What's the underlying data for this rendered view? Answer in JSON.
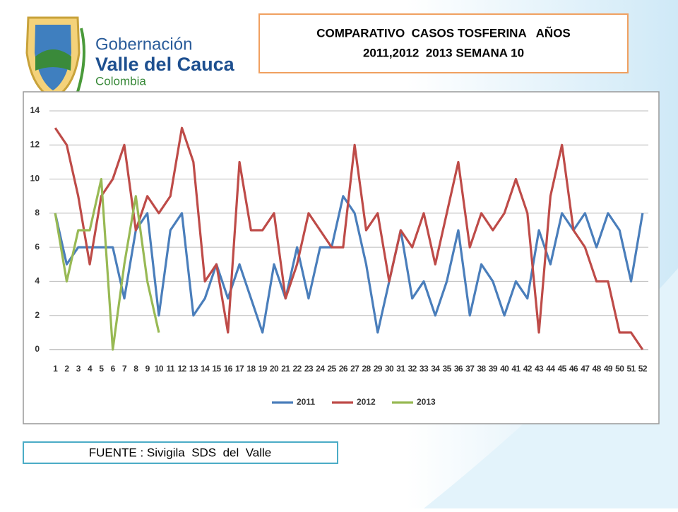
{
  "logo": {
    "lines": [
      "Gobernación",
      "Valle del Cauca",
      "Colombia"
    ]
  },
  "source": "FUENTE : Sivigila  SDS  del  Valle",
  "chart_data": {
    "type": "line",
    "title": [
      "COMPARATIVO  CASOS TOSFERINA   AÑOS",
      "2011,2012  2013 SEMANA 10"
    ],
    "categories": [
      1,
      2,
      3,
      4,
      5,
      6,
      7,
      8,
      9,
      10,
      11,
      12,
      13,
      14,
      15,
      16,
      17,
      18,
      19,
      20,
      21,
      22,
      23,
      24,
      25,
      26,
      27,
      28,
      29,
      30,
      31,
      32,
      33,
      34,
      35,
      36,
      37,
      38,
      39,
      40,
      41,
      42,
      43,
      44,
      45,
      46,
      47,
      48,
      49,
      50,
      51,
      52
    ],
    "series": [
      {
        "name": "2011",
        "color": "#4a7ebb",
        "values": [
          8,
          5,
          6,
          6,
          6,
          6,
          3,
          7,
          8,
          2,
          7,
          8,
          2,
          3,
          5,
          3,
          5,
          3,
          1,
          5,
          3,
          6,
          3,
          6,
          6,
          9,
          8,
          5,
          1,
          4,
          7,
          3,
          4,
          2,
          4,
          7,
          2,
          5,
          4,
          2,
          4,
          3,
          7,
          5,
          8,
          7,
          8,
          6,
          8,
          7,
          4,
          8
        ]
      },
      {
        "name": "2012",
        "color": "#be4b48",
        "values": [
          13,
          12,
          9,
          5,
          9,
          10,
          12,
          7,
          9,
          8,
          9,
          13,
          11,
          4,
          5,
          1,
          11,
          7,
          7,
          8,
          3,
          5,
          8,
          7,
          6,
          6,
          12,
          7,
          8,
          4,
          7,
          6,
          8,
          5,
          8,
          11,
          6,
          8,
          7,
          8,
          10,
          8,
          1,
          9,
          12,
          7,
          6,
          4,
          4,
          1,
          1,
          0
        ]
      },
      {
        "name": "2013",
        "color": "#98b954",
        "values": [
          8,
          4,
          7,
          7,
          10,
          0,
          5,
          9,
          4,
          1,
          null,
          null,
          null,
          null,
          null,
          null,
          null,
          null,
          null,
          null,
          null,
          null,
          null,
          null,
          null,
          null,
          null,
          null,
          null,
          null,
          null,
          null,
          null,
          null,
          null,
          null,
          null,
          null,
          null,
          null,
          null,
          null,
          null,
          null,
          null,
          null,
          null,
          null,
          null,
          null,
          null,
          null
        ]
      }
    ],
    "ylim": [
      0,
      14
    ],
    "yticks": [
      0,
      2,
      4,
      6,
      8,
      10,
      12,
      14
    ],
    "grid": true,
    "legend": "bottom"
  }
}
